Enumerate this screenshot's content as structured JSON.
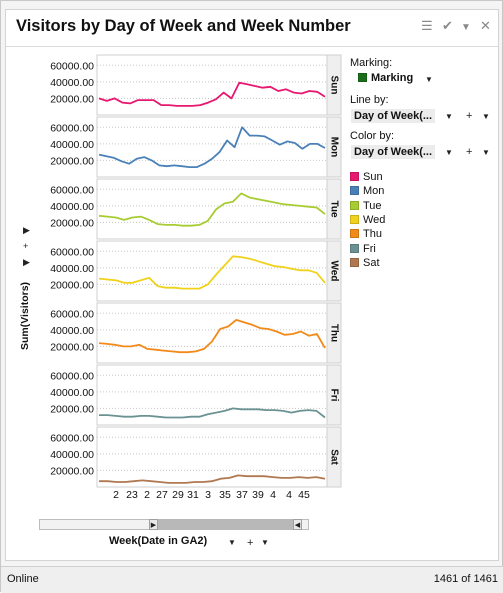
{
  "title": "Visitors by Day of Week and Week Number",
  "toolbar_icons": [
    "list-icon",
    "check-icon",
    "dropdown-icon",
    "close-icon"
  ],
  "panel": {
    "marking_label": "Marking:",
    "marking_value": "Marking",
    "marking_color": "#1a6e1a",
    "line_by_label": "Line by:",
    "line_by_value": "Day of Week(...",
    "color_by_label": "Color by:",
    "color_by_value": "Day of Week(..."
  },
  "x_axis_selector": "Week(Date in GA2)",
  "status": {
    "left": "Online",
    "right": "1461 of 1461"
  },
  "chart_data": {
    "type": "line",
    "ylabel": "Sum(Visitors)",
    "xlabel": "Week(Date in GA2)",
    "ylim": [
      0,
      70000
    ],
    "yticks": [
      "60000.00",
      "40000.00",
      "20000.00"
    ],
    "xtick_labels": [
      "2",
      "23",
      "2",
      "27",
      "29",
      "31",
      "3",
      "35",
      "37",
      "39",
      "4",
      "4",
      "45"
    ],
    "legend": [
      {
        "name": "Sun",
        "color": "#e8176f"
      },
      {
        "name": "Mon",
        "color": "#4a80b8"
      },
      {
        "name": "Tue",
        "color": "#a8cc32"
      },
      {
        "name": "Wed",
        "color": "#f0d21a"
      },
      {
        "name": "Thu",
        "color": "#f28a1a"
      },
      {
        "name": "Fri",
        "color": "#6b9292"
      },
      {
        "name": "Sat",
        "color": "#b07850"
      }
    ],
    "series": [
      {
        "name": "Sun",
        "values": [
          20000,
          17000,
          20000,
          15000,
          14000,
          18000,
          18000,
          18000,
          12000,
          12000,
          11000,
          11000,
          11000,
          12000,
          15000,
          19000,
          27000,
          20000,
          39000,
          37000,
          35000,
          33000,
          34000,
          29000,
          31000,
          27000,
          26000,
          29000,
          28000,
          22000
        ]
      },
      {
        "name": "Mon",
        "values": [
          27000,
          25000,
          23000,
          19000,
          16000,
          22000,
          24000,
          20000,
          14000,
          13000,
          14000,
          13000,
          12000,
          12000,
          16000,
          22000,
          30000,
          44000,
          36000,
          60000,
          50000,
          50000,
          49000,
          44000,
          39000,
          43000,
          41000,
          34000,
          40000,
          40000,
          35000
        ]
      },
      {
        "name": "Tue",
        "values": [
          28000,
          27000,
          26000,
          23000,
          26000,
          27000,
          23000,
          18000,
          17000,
          17000,
          16000,
          16000,
          17000,
          22000,
          36000,
          43000,
          45000,
          55000,
          50000,
          48000,
          46000,
          44000,
          42000,
          41000,
          40000,
          39000,
          38000,
          30000
        ]
      },
      {
        "name": "Wed",
        "values": [
          27000,
          26000,
          25000,
          22000,
          22000,
          25000,
          28000,
          18000,
          16000,
          16000,
          15000,
          15000,
          15000,
          20000,
          32000,
          43000,
          54000,
          53000,
          51000,
          48000,
          45000,
          42000,
          41000,
          39000,
          37000,
          37000,
          34000,
          22000
        ]
      },
      {
        "name": "Thu",
        "values": [
          24000,
          23000,
          22000,
          20000,
          20000,
          22000,
          17000,
          16000,
          15000,
          14000,
          13000,
          13000,
          14000,
          17000,
          26000,
          41000,
          44000,
          52000,
          49000,
          46000,
          42000,
          41000,
          38000,
          34000,
          35000,
          38000,
          33000,
          35000,
          18000
        ]
      },
      {
        "name": "Fri",
        "values": [
          12000,
          12000,
          11000,
          10000,
          10000,
          11000,
          11000,
          10000,
          9000,
          9000,
          9000,
          10000,
          10000,
          13000,
          15000,
          17000,
          20000,
          19000,
          19000,
          19000,
          18000,
          18000,
          17000,
          15000,
          17000,
          18000,
          17000,
          9000
        ]
      },
      {
        "name": "Sat",
        "values": [
          7000,
          7000,
          6000,
          6000,
          7000,
          8000,
          7000,
          6000,
          5000,
          5000,
          5000,
          6000,
          6000,
          7000,
          10000,
          11000,
          14000,
          13000,
          13000,
          13000,
          12000,
          11000,
          11000,
          12000,
          11000,
          12000,
          10000
        ]
      }
    ]
  }
}
